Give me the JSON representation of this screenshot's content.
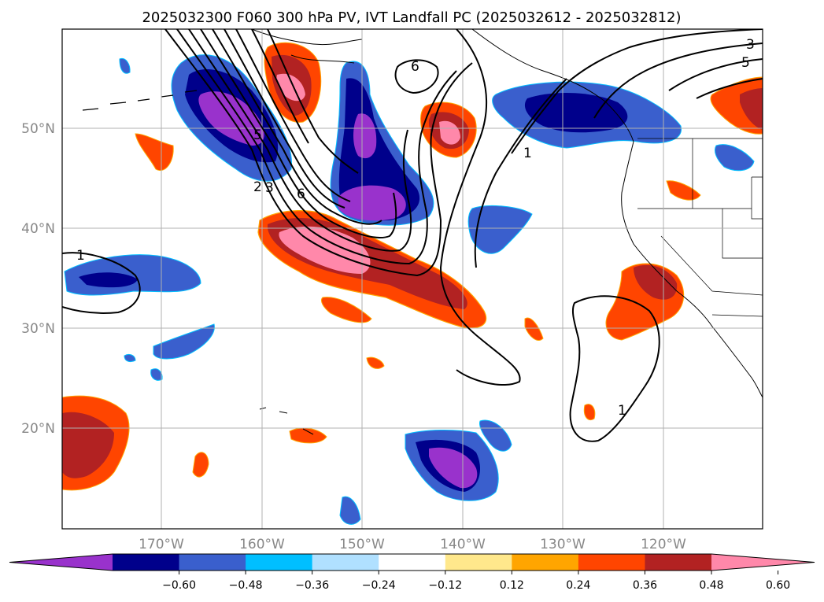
{
  "title": "2025032300 F060 300 hPa PV, IVT Landfall PC (2025032612 - 2025032812)",
  "latitude_labels": [
    "50°N",
    "40°N",
    "30°N",
    "20°N"
  ],
  "longitude_labels": [
    "170°W",
    "160°W",
    "150°W",
    "140°W",
    "130°W",
    "120°W"
  ],
  "contour_labels": [
    "6",
    "5",
    "3",
    "2",
    "6",
    "1",
    "1",
    "1",
    "5",
    "3"
  ],
  "colorbar": {
    "ticks": [
      "−0.60",
      "−0.48",
      "−0.36",
      "−0.24",
      "−0.12",
      "0.12",
      "0.24",
      "0.36",
      "0.48",
      "0.60"
    ],
    "colors": [
      "#9932cc",
      "#00008b",
      "#3a5fcd",
      "#00bfff",
      "#b0e0ff",
      "#ffffff",
      "#ffe88c",
      "#ffa500",
      "#ff4500",
      "#b22222",
      "#ff88aa"
    ],
    "extend": "both"
  },
  "colors": {
    "land_line": "#000000",
    "grid": "#b0b0b0"
  }
}
